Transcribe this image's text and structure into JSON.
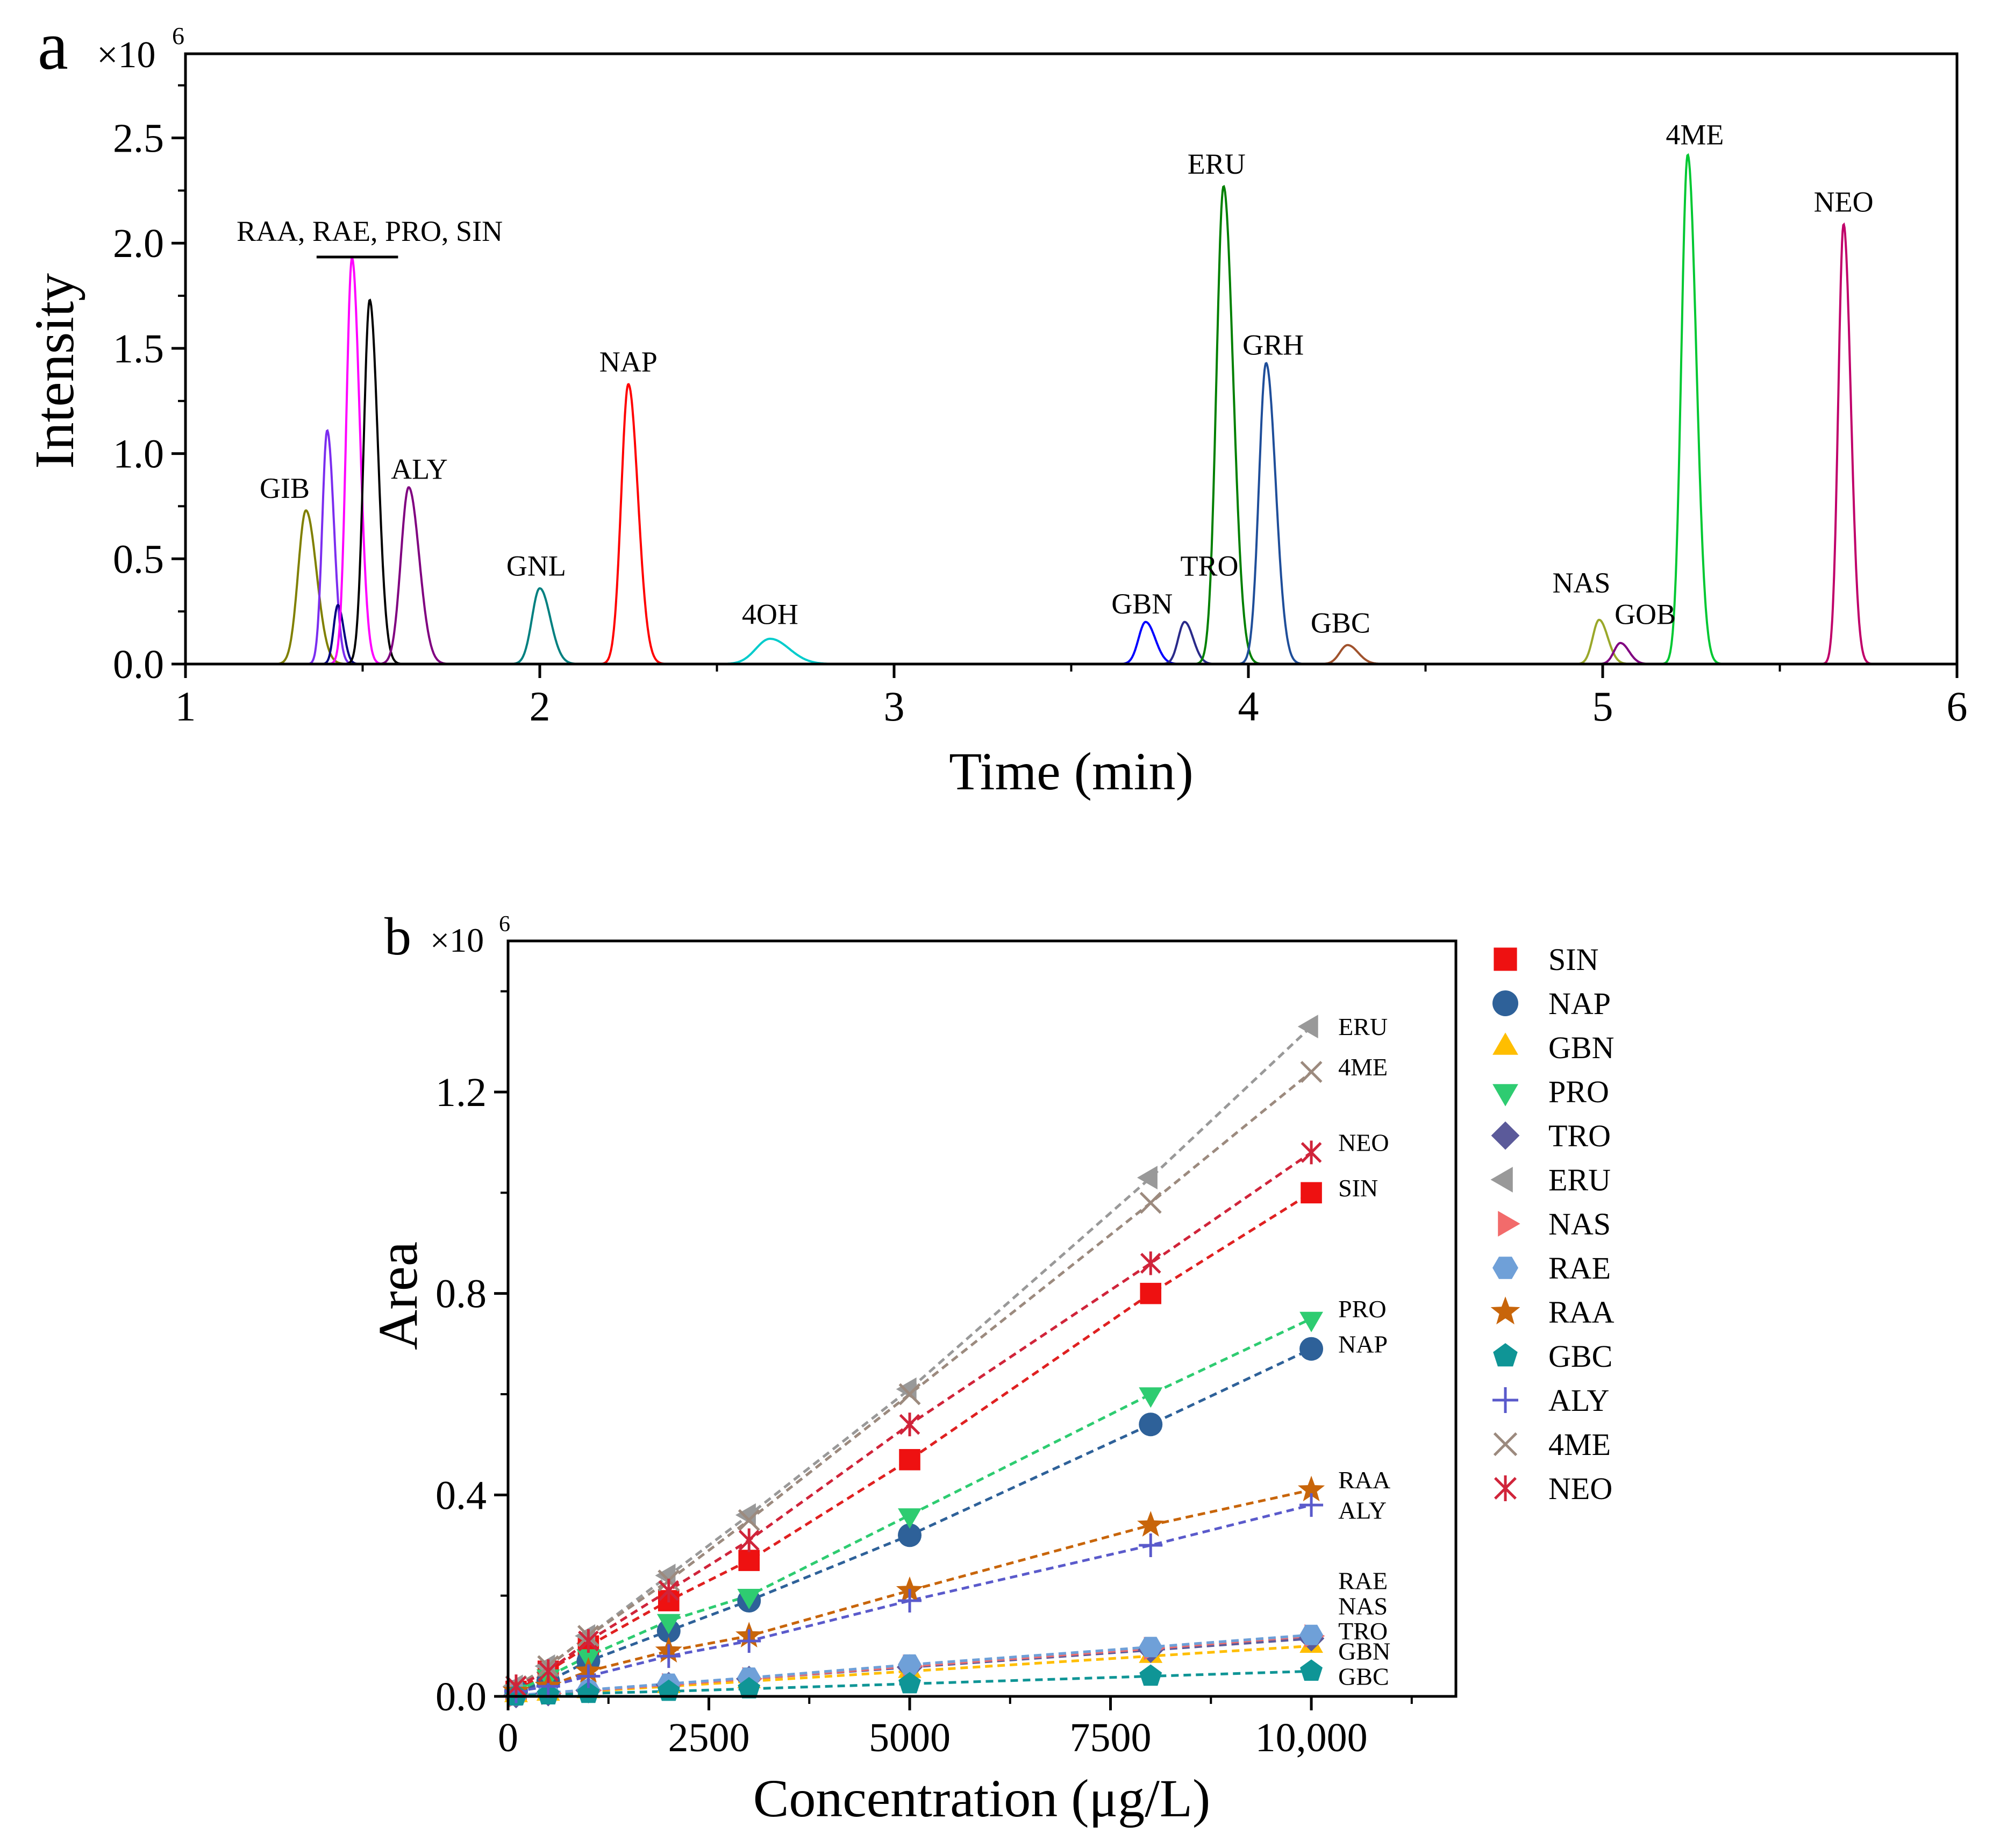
{
  "chart_data": [
    {
      "type": "line",
      "panel_label": "a",
      "multiplier": "×10",
      "multiplier_exp": "6",
      "xlabel": "Time (min)",
      "ylabel": "Intensity",
      "xlim": [
        1,
        6
      ],
      "ylim": [
        0,
        2.9
      ],
      "xticks": [
        1,
        2,
        3,
        4,
        5,
        6
      ],
      "xtick_labels": [
        "1",
        "2",
        "3",
        "4",
        "5",
        "6"
      ],
      "yticks": [
        0,
        0.5,
        1.0,
        1.5,
        2.0,
        2.5
      ],
      "ytick_labels": [
        "0.0",
        "0.5",
        "1.0",
        "1.5",
        "2.0",
        "2.5"
      ],
      "group_label": "RAA, RAE, PRO, SIN",
      "series": [
        {
          "name": "GIB",
          "rt": 1.34,
          "height": 0.73,
          "width": 0.022,
          "color": "#808000",
          "label_at": [
            1.28,
            0.79
          ]
        },
        {
          "name": "RAA",
          "rt": 1.4,
          "height": 1.11,
          "width": 0.014,
          "color": "#7b2df0"
        },
        {
          "name": "RAE",
          "rt": 1.43,
          "height": 0.28,
          "width": 0.012,
          "color": "#000080"
        },
        {
          "name": "PRO",
          "rt": 1.47,
          "height": 1.93,
          "width": 0.016,
          "color": "#ff00ff"
        },
        {
          "name": "SIN",
          "rt": 1.52,
          "height": 1.73,
          "width": 0.017,
          "color": "#000000"
        },
        {
          "name": "ALY",
          "rt": 1.63,
          "height": 0.84,
          "width": 0.022,
          "color": "#800080",
          "label_at": [
            1.66,
            0.88
          ]
        },
        {
          "name": "GNL",
          "rt": 2.0,
          "height": 0.36,
          "width": 0.022,
          "color": "#008080",
          "label_at": [
            1.99,
            0.42
          ]
        },
        {
          "name": "NAP",
          "rt": 2.25,
          "height": 1.33,
          "width": 0.02,
          "color": "#ff0000",
          "label_at": [
            2.25,
            1.39
          ]
        },
        {
          "name": "4OH",
          "rt": 2.65,
          "height": 0.12,
          "width": 0.04,
          "color": "#00cccc",
          "label_at": [
            2.65,
            0.19
          ]
        },
        {
          "name": "GBN",
          "rt": 3.71,
          "height": 0.2,
          "width": 0.02,
          "color": "#0000ff",
          "label_at": [
            3.7,
            0.24
          ]
        },
        {
          "name": "TRO",
          "rt": 3.82,
          "height": 0.2,
          "width": 0.018,
          "color": "#2a2a8a",
          "label_at": [
            3.89,
            0.42
          ]
        },
        {
          "name": "ERU",
          "rt": 3.93,
          "height": 2.27,
          "width": 0.02,
          "color": "#008000",
          "label_at": [
            3.91,
            2.33
          ]
        },
        {
          "name": "GRH",
          "rt": 4.05,
          "height": 1.43,
          "width": 0.02,
          "color": "#1f4e9a",
          "label_at": [
            4.07,
            1.47
          ]
        },
        {
          "name": "GBC",
          "rt": 4.28,
          "height": 0.09,
          "width": 0.022,
          "color": "#a0522d",
          "label_at": [
            4.26,
            0.15
          ]
        },
        {
          "name": "NAS",
          "rt": 4.99,
          "height": 0.21,
          "width": 0.018,
          "color": "#9aa82a",
          "label_at": [
            4.94,
            0.34
          ]
        },
        {
          "name": "GOB",
          "rt": 5.05,
          "height": 0.1,
          "width": 0.018,
          "color": "#800080",
          "label_at": [
            5.12,
            0.19
          ]
        },
        {
          "name": "4ME",
          "rt": 5.24,
          "height": 2.42,
          "width": 0.018,
          "color": "#00c832",
          "label_at": [
            5.26,
            2.47
          ]
        },
        {
          "name": "NEO",
          "rt": 5.68,
          "height": 2.09,
          "width": 0.015,
          "color": "#c0006a",
          "label_at": [
            5.68,
            2.15
          ]
        }
      ]
    },
    {
      "type": "scatter",
      "panel_label": "b",
      "multiplier": "×10",
      "multiplier_exp": "6",
      "xlabel": "Concentration (μg/L)",
      "ylabel": "Area",
      "xlim": [
        0,
        11800
      ],
      "ylim": [
        0,
        1.5
      ],
      "xticks": [
        0,
        2500,
        5000,
        7500,
        10000
      ],
      "xtick_labels": [
        "0",
        "2500",
        "5000",
        "7500",
        "10,000"
      ],
      "yticks": [
        0,
        0.4,
        0.8,
        1.2
      ],
      "ytick_labels": [
        "0.0",
        "0.4",
        "0.8",
        "1.2"
      ],
      "x": [
        100,
        500,
        1000,
        2000,
        3000,
        5000,
        8000,
        10000
      ],
      "series": [
        {
          "name": "SIN",
          "marker": "square",
          "color": "#ee1111",
          "line_color": "#e02020",
          "end_label": "SIN",
          "end_label_y": 1.01,
          "values": [
            0.01,
            0.05,
            0.1,
            0.19,
            0.27,
            0.47,
            0.8,
            1.0
          ]
        },
        {
          "name": "NAP",
          "marker": "circle",
          "color": "#2e6199",
          "line_color": "#2e6199",
          "end_label": "NAP",
          "end_label_y": 0.7,
          "values": [
            0.01,
            0.03,
            0.07,
            0.13,
            0.19,
            0.32,
            0.54,
            0.69
          ]
        },
        {
          "name": "GBN",
          "marker": "triangle-up",
          "color": "#ffbe00",
          "line_color": "#ffbe00",
          "end_label": "GBN",
          "end_label_y": 0.09,
          "values": [
            0.002,
            0.005,
            0.01,
            0.02,
            0.03,
            0.05,
            0.08,
            0.1
          ]
        },
        {
          "name": "PRO",
          "marker": "triangle-down",
          "color": "#2ecc71",
          "line_color": "#2ecc71",
          "end_label": "PRO",
          "end_label_y": 0.77,
          "values": [
            0.01,
            0.04,
            0.08,
            0.15,
            0.2,
            0.36,
            0.6,
            0.75
          ]
        },
        {
          "name": "TRO",
          "marker": "diamond",
          "color": "#5b5a9a",
          "line_color": "#5b5a9a",
          "end_label": "TRO",
          "end_label_y": 0.13,
          "values": [
            0.002,
            0.006,
            0.012,
            0.023,
            0.035,
            0.058,
            0.092,
            0.115
          ]
        },
        {
          "name": "ERU",
          "marker": "triangle-left",
          "color": "#999999",
          "line_color": "#999999",
          "end_label": "ERU",
          "end_label_y": 1.33,
          "values": [
            0.02,
            0.06,
            0.12,
            0.24,
            0.36,
            0.61,
            1.03,
            1.33
          ]
        },
        {
          "name": "NAS",
          "marker": "triangle-right",
          "color": "#f26b6b",
          "line_color": "#f26b6b",
          "end_label": "NAS",
          "end_label_y": 0.18,
          "values": [
            0.002,
            0.006,
            0.012,
            0.023,
            0.035,
            0.06,
            0.095,
            0.12
          ]
        },
        {
          "name": "RAE",
          "marker": "hexagon",
          "color": "#6fa0d8",
          "line_color": "#6fa0d8",
          "end_label": "RAE",
          "end_label_y": 0.23,
          "values": [
            0.002,
            0.007,
            0.013,
            0.025,
            0.037,
            0.063,
            0.098,
            0.122
          ]
        },
        {
          "name": "RAA",
          "marker": "star",
          "color": "#c8650a",
          "line_color": "#c8650a",
          "end_label": "RAA",
          "end_label_y": 0.43,
          "values": [
            0.01,
            0.02,
            0.05,
            0.09,
            0.12,
            0.21,
            0.34,
            0.41
          ]
        },
        {
          "name": "GBC",
          "marker": "pentagon",
          "color": "#0f9596",
          "line_color": "#0f9596",
          "end_label": "GBC",
          "end_label_y": 0.04,
          "values": [
            0.001,
            0.003,
            0.006,
            0.01,
            0.015,
            0.025,
            0.04,
            0.05
          ]
        },
        {
          "name": "ALY",
          "marker": "plus",
          "color": "#5a5acb",
          "line_color": "#5a5acb",
          "end_label": "ALY",
          "end_label_y": 0.37,
          "values": [
            0.01,
            0.02,
            0.04,
            0.08,
            0.11,
            0.19,
            0.3,
            0.38
          ]
        },
        {
          "name": "4ME",
          "marker": "x",
          "color": "#9c8a7e",
          "line_color": "#9c8a7e",
          "end_label": "4ME",
          "end_label_y": 1.25,
          "values": [
            0.02,
            0.06,
            0.12,
            0.23,
            0.35,
            0.6,
            0.98,
            1.24
          ]
        },
        {
          "name": "NEO",
          "marker": "asterisk",
          "color": "#d0243a",
          "line_color": "#d0243a",
          "end_label": "NEO",
          "end_label_y": 1.1,
          "values": [
            0.02,
            0.05,
            0.11,
            0.21,
            0.31,
            0.54,
            0.86,
            1.08
          ]
        }
      ]
    }
  ]
}
